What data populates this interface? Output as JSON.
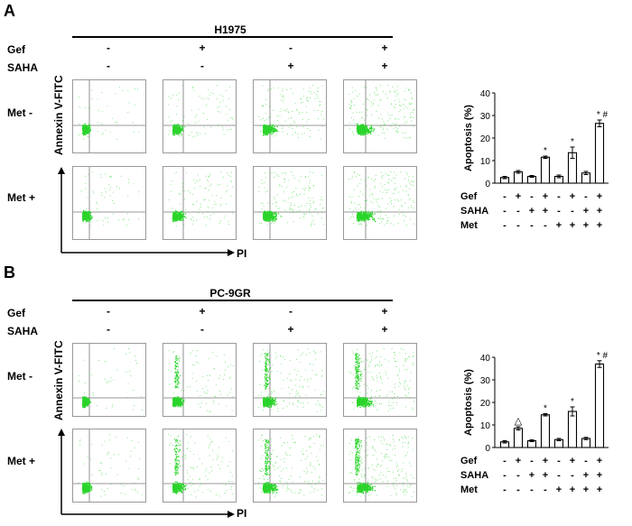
{
  "figure": {
    "panels": [
      {
        "letter": "A",
        "cell_line": "H1975",
        "header_rows": [
          {
            "label": "Gef",
            "signs": [
              "-",
              "+",
              "-",
              "+"
            ]
          },
          {
            "label": "SAHA",
            "signs": [
              "-",
              "-",
              "+",
              "+"
            ]
          }
        ],
        "row_labels": [
          "Met -",
          "Met +"
        ],
        "y_axis_label": "Annexin V-FITC",
        "x_axis_label": "PI",
        "chart_data": {
          "type": "bar",
          "ylabel": "Apoptosis (%)",
          "ylim": [
            0,
            40
          ],
          "yticks": [
            0,
            10,
            20,
            30,
            40
          ],
          "values": [
            2.5,
            5,
            3,
            11.5,
            3,
            13.5,
            4.5,
            26.5
          ],
          "errors": [
            0.5,
            0.6,
            0.4,
            0.5,
            0.6,
            2.5,
            0.7,
            1.5
          ],
          "annotations": [
            "",
            "",
            "",
            "*",
            "",
            "*",
            "",
            "* #"
          ],
          "condition_rows": [
            {
              "label": "Gef",
              "signs": [
                "-",
                "+",
                "-",
                "+",
                "-",
                "+",
                "-",
                "+"
              ]
            },
            {
              "label": "SAHA",
              "signs": [
                "-",
                "-",
                "+",
                "+",
                "-",
                "-",
                "+",
                "+"
              ]
            },
            {
              "label": "Met",
              "signs": [
                "-",
                "-",
                "-",
                "-",
                "+",
                "+",
                "+",
                "+"
              ]
            }
          ]
        }
      },
      {
        "letter": "B",
        "cell_line": "PC-9GR",
        "header_rows": [
          {
            "label": "Gef",
            "signs": [
              "-",
              "+",
              "-",
              "+"
            ]
          },
          {
            "label": "SAHA",
            "signs": [
              "-",
              "-",
              "+",
              "+"
            ]
          }
        ],
        "row_labels": [
          "Met -",
          "Met +"
        ],
        "y_axis_label": "Annexin V-FITC",
        "x_axis_label": "PI",
        "chart_data": {
          "type": "bar",
          "ylabel": "Apoptosis (%)",
          "ylim": [
            0,
            40
          ],
          "yticks": [
            0,
            10,
            20,
            30,
            40
          ],
          "values": [
            2.5,
            8.5,
            3,
            14.5,
            3.5,
            16,
            4,
            37
          ],
          "errors": [
            0.5,
            0.7,
            0.4,
            0.5,
            0.5,
            2,
            0.5,
            1.5
          ],
          "annotations": [
            "",
            "△",
            "",
            "*",
            "",
            "*",
            "",
            "* #"
          ],
          "condition_rows": [
            {
              "label": "Gef",
              "signs": [
                "-",
                "+",
                "-",
                "+",
                "-",
                "+",
                "-",
                "+"
              ]
            },
            {
              "label": "SAHA",
              "signs": [
                "-",
                "-",
                "+",
                "+",
                "-",
                "-",
                "+",
                "+"
              ]
            },
            {
              "label": "Met",
              "signs": [
                "-",
                "-",
                "-",
                "-",
                "+",
                "+",
                "+",
                "+"
              ]
            }
          ]
        }
      }
    ],
    "colors": {
      "dots": "#2bd42b",
      "bar_fill": "#ffffff",
      "line": "#000000"
    }
  }
}
